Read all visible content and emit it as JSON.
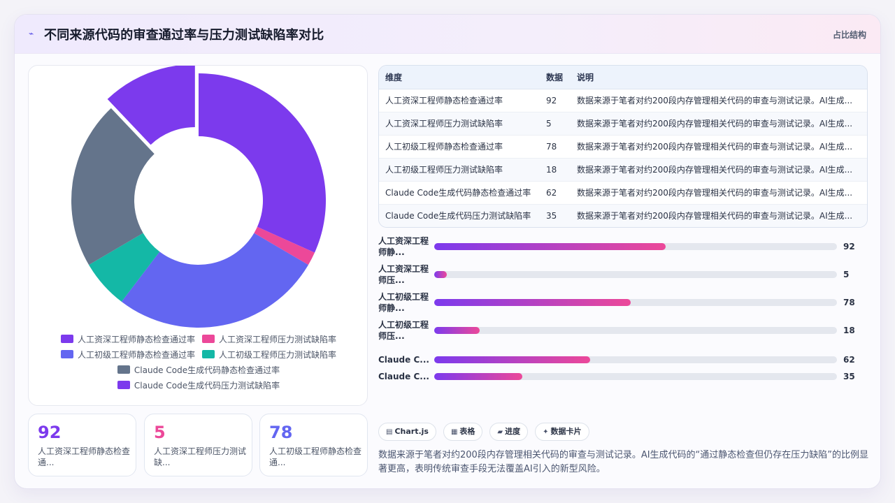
{
  "header": {
    "title": "不同来源代码的审查通过率与压力测试缺陷率对比",
    "badge": "占比结构",
    "logo_icon": "sparkline-icon"
  },
  "chart_data": {
    "type": "pie",
    "variant": "donut",
    "categories": [
      "人工资深工程师静态检查通过率",
      "人工资深工程师压力测试缺陷率",
      "人工初级工程师静态检查通过率",
      "人工初级工程师压力测试缺陷率",
      "Claude Code生成代码静态检查通过率",
      "Claude Code生成代码压力测试缺陷率"
    ],
    "values": [
      92,
      5,
      78,
      18,
      62,
      35
    ],
    "colors": [
      "#7c3aed",
      "#ec4899",
      "#6366f1",
      "#14b8a6",
      "#64748b",
      "#7c3aed"
    ],
    "offset_slice_index": 5,
    "legend_position": "bottom"
  },
  "kpis": [
    {
      "value": "92",
      "label": "人工资深工程师静态检查通...",
      "color": "#7c3aed"
    },
    {
      "value": "5",
      "label": "人工资深工程师压力测试缺...",
      "color": "#ec4899"
    },
    {
      "value": "78",
      "label": "人工初级工程师静态检查通...",
      "color": "#6366f1"
    }
  ],
  "table": {
    "headers": [
      "维度",
      "数据",
      "说明"
    ],
    "rows": [
      [
        "人工资深工程师静态检查通过率",
        "92",
        "数据来源于笔者对约200段内存管理相关代码的审查与测试记录。AI生成..."
      ],
      [
        "人工资深工程师压力测试缺陷率",
        "5",
        "数据来源于笔者对约200段内存管理相关代码的审查与测试记录。AI生成..."
      ],
      [
        "人工初级工程师静态检查通过率",
        "78",
        "数据来源于笔者对约200段内存管理相关代码的审查与测试记录。AI生成..."
      ],
      [
        "人工初级工程师压力测试缺陷率",
        "18",
        "数据来源于笔者对约200段内存管理相关代码的审查与测试记录。AI生成..."
      ],
      [
        "Claude Code生成代码静态检查通过率",
        "62",
        "数据来源于笔者对约200段内存管理相关代码的审查与测试记录。AI生成..."
      ],
      [
        "Claude Code生成代码压力测试缺陷率",
        "35",
        "数据来源于笔者对约200段内存管理相关代码的审查与测试记录。AI生成..."
      ]
    ]
  },
  "bars": {
    "max": 160,
    "items": [
      {
        "label": "人工资深工程师静...",
        "value": 92
      },
      {
        "label": "人工资深工程师压...",
        "value": 5
      },
      {
        "label": "人工初级工程师静...",
        "value": 78
      },
      {
        "label": "人工初级工程师压...",
        "value": 18
      },
      {
        "label": "Claude C...",
        "value": 62
      },
      {
        "label": "Claude C...",
        "value": 35
      }
    ]
  },
  "chips": [
    {
      "icon": "chart-icon",
      "glyph": "▤",
      "label": "Chart.js"
    },
    {
      "icon": "table-icon",
      "glyph": "▦",
      "label": "表格"
    },
    {
      "icon": "progress-icon",
      "glyph": "▰",
      "label": "进度"
    },
    {
      "icon": "sparkle-icon",
      "glyph": "✦",
      "label": "数据卡片"
    }
  ],
  "note": "数据来源于笔者对约200段内存管理相关代码的审查与测试记录。AI生成代码的“通过静态检查但仍存在压力缺陷”的比例显著更高，表明传统审查手段无法覆盖AI引入的新型风险。"
}
